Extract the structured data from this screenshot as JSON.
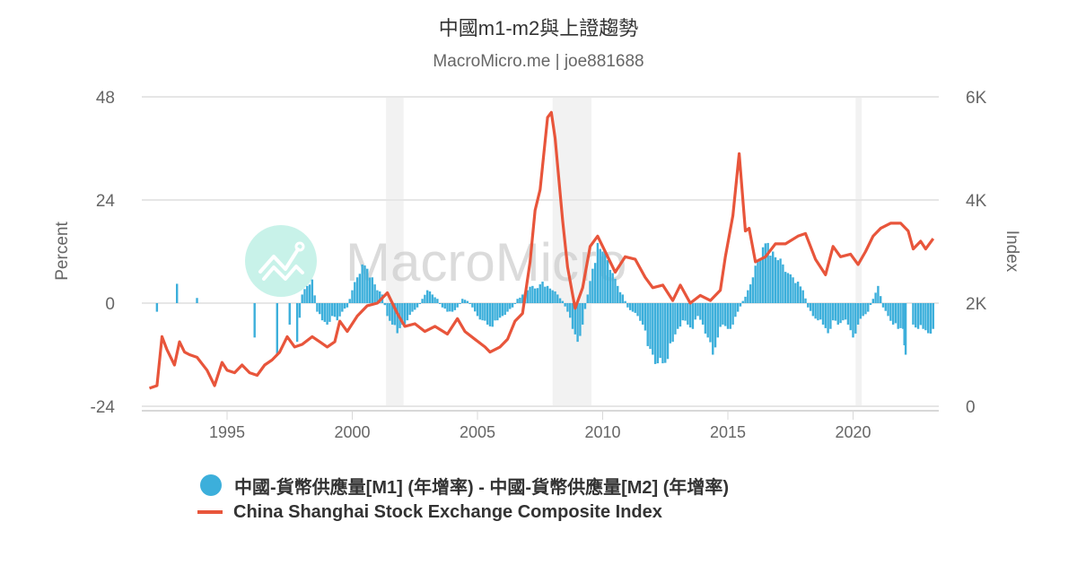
{
  "header": {
    "title": "中國m1-m2與上證趨勢",
    "subtitle": "MacroMicro.me | joe881688"
  },
  "watermark": {
    "text": "MacroMicro",
    "logo_color": "#c8f2e9"
  },
  "legend": {
    "items": [
      {
        "label": "中國-貨幣供應量[M1] (年增率) - 中國-貨幣供應量[M2] (年增率)",
        "symbol": "circle",
        "color": "#3cafdb"
      },
      {
        "label": "China Shanghai Stock Exchange Composite Index",
        "symbol": "line",
        "color": "#e8553b"
      }
    ]
  },
  "chart_data": {
    "type": "bar+line",
    "title": "中國m1-m2與上證趨勢",
    "subtitle": "MacroMicro.me | joe881688",
    "xlabel": "",
    "x_ticks": [
      "1995",
      "2000",
      "2005",
      "2010",
      "2015",
      "2020"
    ],
    "x_range": [
      1991.8,
      2023.6
    ],
    "left_axis": {
      "label": "Percent",
      "ticks": [
        "48",
        "24",
        "0",
        "-24"
      ],
      "range": [
        -24,
        48
      ]
    },
    "right_axis": {
      "label": "Index",
      "ticks": [
        "6K",
        "4K",
        "2K",
        "0"
      ],
      "range": [
        0,
        6000
      ]
    },
    "grid": true,
    "legend_position": "bottom",
    "shaded_periods": [
      [
        2001.35,
        2002.05
      ],
      [
        2008.0,
        2009.55
      ],
      [
        2020.1,
        2020.35
      ]
    ],
    "series": [
      {
        "name": "中國-貨幣供應量[M1] (年增率) - 中國-貨幣供應量[M2] (年增率)",
        "axis": "left",
        "type": "bar",
        "color": "#3cafdb",
        "points": [
          [
            1992.2,
            -2
          ],
          [
            1993.0,
            4.5
          ],
          [
            1993.8,
            1.2
          ],
          [
            1996.1,
            -8
          ],
          [
            1997.0,
            -12
          ],
          [
            1997.5,
            -5
          ],
          [
            1997.8,
            -9
          ],
          [
            1998.0,
            2
          ],
          [
            1998.2,
            4
          ],
          [
            1998.4,
            5.5
          ],
          [
            1998.6,
            -2
          ],
          [
            1998.8,
            -4
          ],
          [
            1999.0,
            -5
          ],
          [
            1999.2,
            -3
          ],
          [
            1999.4,
            -4
          ],
          [
            1999.6,
            -2
          ],
          [
            1999.8,
            -1
          ],
          [
            2000.0,
            3
          ],
          [
            2000.2,
            6
          ],
          [
            2000.4,
            9
          ],
          [
            2000.6,
            8
          ],
          [
            2000.8,
            6
          ],
          [
            2001.0,
            3
          ],
          [
            2001.2,
            2
          ],
          [
            2001.4,
            -3
          ],
          [
            2001.6,
            -5
          ],
          [
            2001.8,
            -7
          ],
          [
            2002.0,
            -5
          ],
          [
            2002.2,
            -4
          ],
          [
            2002.4,
            -2
          ],
          [
            2002.6,
            -1
          ],
          [
            2002.8,
            1
          ],
          [
            2003.0,
            3
          ],
          [
            2003.2,
            2
          ],
          [
            2003.4,
            1
          ],
          [
            2003.6,
            -1
          ],
          [
            2003.8,
            -2
          ],
          [
            2004.0,
            -2
          ],
          [
            2004.2,
            -1
          ],
          [
            2004.4,
            1
          ],
          [
            2004.6,
            0.5
          ],
          [
            2004.8,
            -1
          ],
          [
            2005.0,
            -3
          ],
          [
            2005.2,
            -4
          ],
          [
            2005.4,
            -5
          ],
          [
            2005.6,
            -5.5
          ],
          [
            2005.8,
            -4
          ],
          [
            2006.0,
            -3
          ],
          [
            2006.2,
            -2
          ],
          [
            2006.4,
            -1
          ],
          [
            2006.6,
            1
          ],
          [
            2006.8,
            2
          ],
          [
            2007.0,
            3
          ],
          [
            2007.2,
            4
          ],
          [
            2007.4,
            3.5
          ],
          [
            2007.6,
            5
          ],
          [
            2007.8,
            4
          ],
          [
            2008.0,
            3
          ],
          [
            2008.2,
            2
          ],
          [
            2008.4,
            0.5
          ],
          [
            2008.6,
            -2
          ],
          [
            2008.8,
            -6
          ],
          [
            2009.0,
            -9
          ],
          [
            2009.2,
            -5
          ],
          [
            2009.4,
            2
          ],
          [
            2009.6,
            8
          ],
          [
            2009.8,
            14
          ],
          [
            2010.0,
            12
          ],
          [
            2010.2,
            10
          ],
          [
            2010.4,
            7
          ],
          [
            2010.6,
            4
          ],
          [
            2010.8,
            2
          ],
          [
            2011.0,
            -1
          ],
          [
            2011.2,
            -2
          ],
          [
            2011.4,
            -3
          ],
          [
            2011.6,
            -5
          ],
          [
            2011.8,
            -10
          ],
          [
            2012.0,
            -12
          ],
          [
            2012.2,
            -14
          ],
          [
            2012.4,
            -14
          ],
          [
            2012.6,
            -13
          ],
          [
            2012.8,
            -9
          ],
          [
            2013.0,
            -6
          ],
          [
            2013.2,
            -4
          ],
          [
            2013.4,
            -5
          ],
          [
            2013.6,
            -6
          ],
          [
            2013.8,
            -3
          ],
          [
            2014.0,
            -5
          ],
          [
            2014.2,
            -8
          ],
          [
            2014.4,
            -12
          ],
          [
            2014.6,
            -8
          ],
          [
            2014.8,
            -5
          ],
          [
            2015.0,
            -6
          ],
          [
            2015.2,
            -5
          ],
          [
            2015.4,
            -2
          ],
          [
            2015.6,
            0.5
          ],
          [
            2015.8,
            3
          ],
          [
            2016.0,
            6
          ],
          [
            2016.2,
            10
          ],
          [
            2016.4,
            13
          ],
          [
            2016.6,
            14
          ],
          [
            2016.8,
            12
          ],
          [
            2017.0,
            10
          ],
          [
            2017.2,
            9
          ],
          [
            2017.4,
            7
          ],
          [
            2017.6,
            6
          ],
          [
            2017.8,
            5
          ],
          [
            2018.0,
            3
          ],
          [
            2018.2,
            -1
          ],
          [
            2018.4,
            -3
          ],
          [
            2018.6,
            -4
          ],
          [
            2018.8,
            -5
          ],
          [
            2019.0,
            -7
          ],
          [
            2019.2,
            -4
          ],
          [
            2019.4,
            -5
          ],
          [
            2019.6,
            -4
          ],
          [
            2019.8,
            -5
          ],
          [
            2020.0,
            -8
          ],
          [
            2020.2,
            -5
          ],
          [
            2020.4,
            -3
          ],
          [
            2020.6,
            -2
          ],
          [
            2020.8,
            1
          ],
          [
            2021.0,
            4
          ],
          [
            2021.2,
            -1
          ],
          [
            2021.4,
            -3
          ],
          [
            2021.6,
            -5
          ],
          [
            2021.8,
            -6
          ],
          [
            2022.0,
            -6
          ],
          [
            2022.1,
            -12
          ],
          [
            2022.4,
            -5
          ],
          [
            2022.6,
            -6
          ],
          [
            2022.8,
            -6
          ],
          [
            2023.0,
            -7
          ],
          [
            2023.2,
            -6
          ]
        ]
      },
      {
        "name": "China Shanghai Stock Exchange Composite Index",
        "axis": "right",
        "type": "line",
        "color": "#e8553b",
        "points": [
          [
            1991.9,
            350
          ],
          [
            1992.2,
            400
          ],
          [
            1992.4,
            1350
          ],
          [
            1992.6,
            1100
          ],
          [
            1992.9,
            800
          ],
          [
            1993.1,
            1250
          ],
          [
            1993.3,
            1050
          ],
          [
            1993.5,
            1000
          ],
          [
            1993.8,
            950
          ],
          [
            1994.2,
            700
          ],
          [
            1994.5,
            400
          ],
          [
            1994.8,
            850
          ],
          [
            1995.0,
            700
          ],
          [
            1995.3,
            650
          ],
          [
            1995.6,
            800
          ],
          [
            1995.9,
            650
          ],
          [
            1996.2,
            600
          ],
          [
            1996.5,
            800
          ],
          [
            1996.8,
            900
          ],
          [
            1997.1,
            1050
          ],
          [
            1997.4,
            1350
          ],
          [
            1997.7,
            1150
          ],
          [
            1998.0,
            1200
          ],
          [
            1998.4,
            1350
          ],
          [
            1998.7,
            1250
          ],
          [
            1999.0,
            1150
          ],
          [
            1999.3,
            1250
          ],
          [
            1999.5,
            1650
          ],
          [
            1999.8,
            1450
          ],
          [
            2000.2,
            1750
          ],
          [
            2000.6,
            1950
          ],
          [
            2001.0,
            2000
          ],
          [
            2001.4,
            2200
          ],
          [
            2001.8,
            1800
          ],
          [
            2002.1,
            1550
          ],
          [
            2002.5,
            1600
          ],
          [
            2002.9,
            1450
          ],
          [
            2003.3,
            1550
          ],
          [
            2003.8,
            1400
          ],
          [
            2004.2,
            1700
          ],
          [
            2004.5,
            1450
          ],
          [
            2004.9,
            1300
          ],
          [
            2005.3,
            1150
          ],
          [
            2005.5,
            1050
          ],
          [
            2005.9,
            1150
          ],
          [
            2006.2,
            1300
          ],
          [
            2006.5,
            1650
          ],
          [
            2006.8,
            1800
          ],
          [
            2007.1,
            2800
          ],
          [
            2007.3,
            3800
          ],
          [
            2007.5,
            4200
          ],
          [
            2007.8,
            5600
          ],
          [
            2007.95,
            5700
          ],
          [
            2008.1,
            5200
          ],
          [
            2008.4,
            3600
          ],
          [
            2008.6,
            2700
          ],
          [
            2008.9,
            1900
          ],
          [
            2009.2,
            2300
          ],
          [
            2009.5,
            3100
          ],
          [
            2009.8,
            3300
          ],
          [
            2010.1,
            3000
          ],
          [
            2010.5,
            2600
          ],
          [
            2010.9,
            2900
          ],
          [
            2011.3,
            2850
          ],
          [
            2011.7,
            2500
          ],
          [
            2012.0,
            2300
          ],
          [
            2012.4,
            2350
          ],
          [
            2012.8,
            2050
          ],
          [
            2013.1,
            2350
          ],
          [
            2013.5,
            2000
          ],
          [
            2013.9,
            2150
          ],
          [
            2014.3,
            2050
          ],
          [
            2014.7,
            2250
          ],
          [
            2014.9,
            2900
          ],
          [
            2015.2,
            3700
          ],
          [
            2015.45,
            4900
          ],
          [
            2015.7,
            3400
          ],
          [
            2015.85,
            3450
          ],
          [
            2016.1,
            2800
          ],
          [
            2016.5,
            2900
          ],
          [
            2016.9,
            3150
          ],
          [
            2017.3,
            3150
          ],
          [
            2017.8,
            3300
          ],
          [
            2018.1,
            3350
          ],
          [
            2018.5,
            2850
          ],
          [
            2018.9,
            2550
          ],
          [
            2019.2,
            3100
          ],
          [
            2019.5,
            2900
          ],
          [
            2019.9,
            2950
          ],
          [
            2020.2,
            2750
          ],
          [
            2020.5,
            3000
          ],
          [
            2020.8,
            3300
          ],
          [
            2021.1,
            3450
          ],
          [
            2021.5,
            3550
          ],
          [
            2021.9,
            3550
          ],
          [
            2022.2,
            3400
          ],
          [
            2022.4,
            3050
          ],
          [
            2022.7,
            3200
          ],
          [
            2022.9,
            3050
          ],
          [
            2023.2,
            3250
          ]
        ]
      }
    ]
  }
}
